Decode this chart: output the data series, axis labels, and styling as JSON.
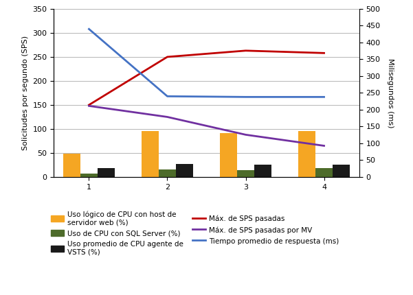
{
  "x_ticks": [
    1,
    2,
    3,
    4
  ],
  "bar_width": 0.22,
  "bar_orange": [
    48,
    95,
    92,
    96
  ],
  "bar_green": [
    7,
    15,
    14,
    19
  ],
  "bar_black": [
    18,
    27,
    25,
    25
  ],
  "line_red": [
    150,
    250,
    263,
    258
  ],
  "line_purple": [
    148,
    125,
    88,
    65
  ],
  "line_blue_ms": [
    440,
    240,
    238,
    238
  ],
  "ylim_left": [
    0,
    350
  ],
  "ylim_right": [
    0,
    500
  ],
  "yticks_left": [
    0,
    50,
    100,
    150,
    200,
    250,
    300,
    350
  ],
  "yticks_right": [
    0,
    50,
    100,
    150,
    200,
    250,
    300,
    350,
    400,
    450,
    500
  ],
  "ylabel_left": "Solicitudes por segundo (SPS)",
  "ylabel_right": "Milisegundos (ms)",
  "color_orange": "#F5A623",
  "color_green": "#4D6B2A",
  "color_black": "#1A1A1A",
  "color_red": "#C00000",
  "color_purple": "#7030A0",
  "color_blue": "#4472C4",
  "background_color": "#FFFFFF",
  "grid_color": "#AAAAAA",
  "legend_col1": [
    "Uso lógico de CPU con host de\nservidor web (%)",
    "Uso promedio de CPU agente de\nVSTS (%)",
    "Máx. de SPS pasadas por MV"
  ],
  "legend_col2": [
    "Uso de CPU con SQL Server (%)",
    "Máx. de SPS pasadas",
    "Tiempo promedio de respuesta (ms)"
  ]
}
